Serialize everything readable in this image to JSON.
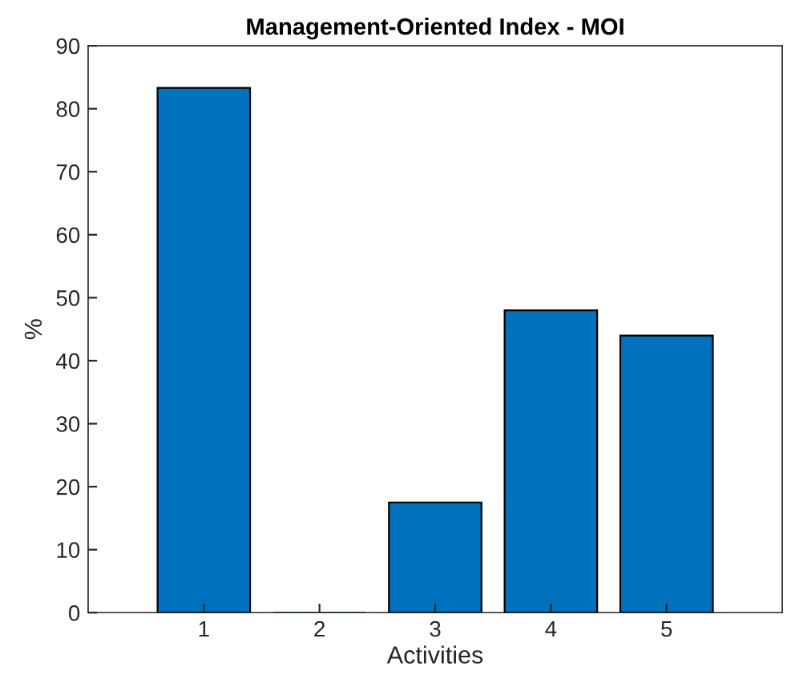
{
  "chart_data": {
    "type": "bar",
    "title": "Management-Oriented Index - MOI",
    "xlabel": "Activities",
    "ylabel": "%",
    "categories": [
      "1",
      "2",
      "3",
      "4",
      "5"
    ],
    "values": [
      83.3,
      0,
      17.5,
      48,
      44
    ],
    "color": "#0072bd",
    "ylim": [
      0,
      90
    ],
    "yticks": [
      0,
      10,
      20,
      30,
      40,
      50,
      60,
      70,
      80,
      90
    ],
    "grid": false
  }
}
